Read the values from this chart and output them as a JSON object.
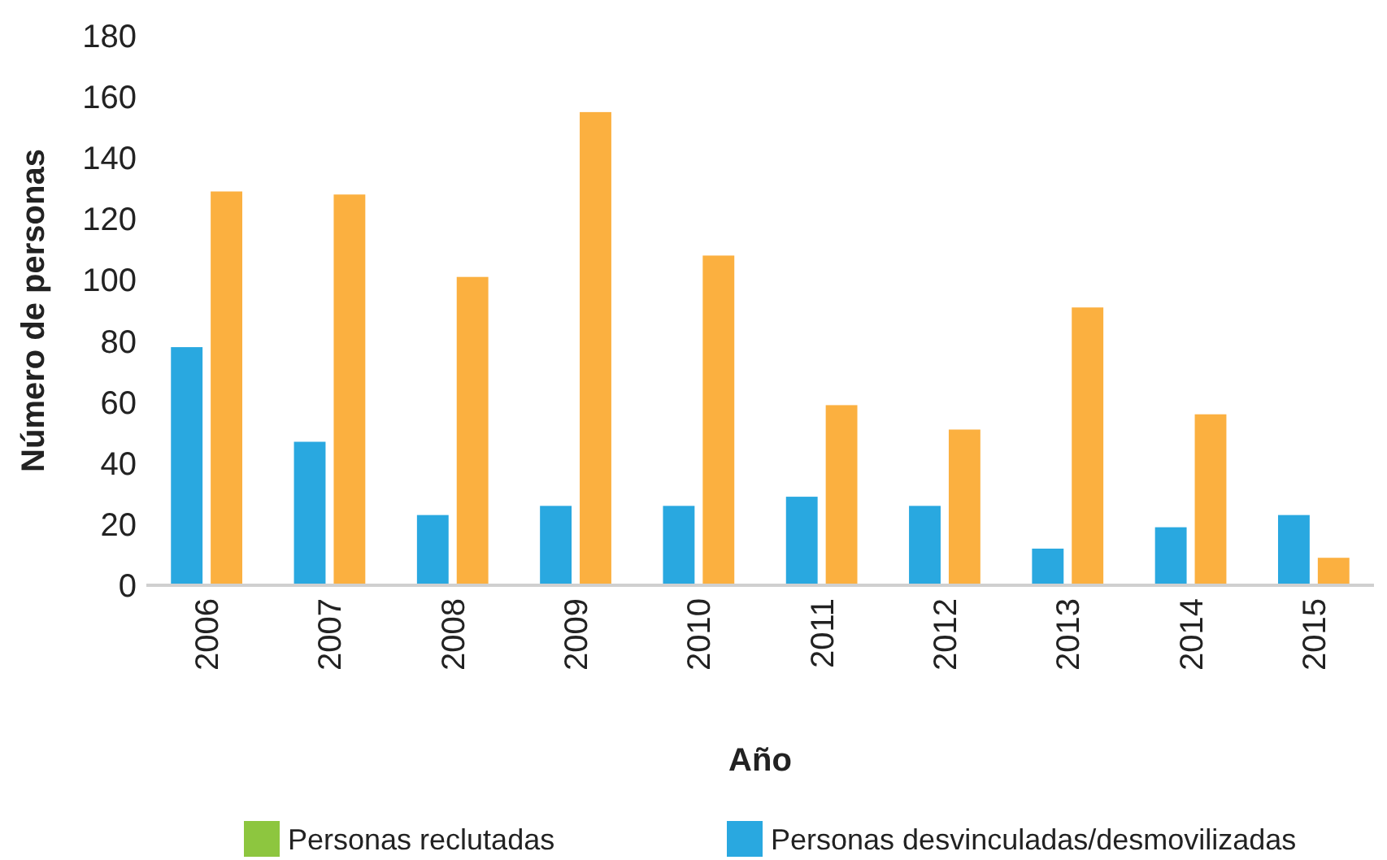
{
  "chart_data": {
    "type": "bar",
    "xlabel": "Año",
    "ylabel": "Número de personas",
    "categories": [
      "2006",
      "2007",
      "2008",
      "2009",
      "2010",
      "2011",
      "2012",
      "2013",
      "2014",
      "2015"
    ],
    "series": [
      {
        "name": "Personas reclutadas",
        "color": "#8dc63f",
        "values": [
          null,
          null,
          null,
          null,
          null,
          null,
          null,
          null,
          null,
          null
        ]
      },
      {
        "name": "Personas desvinculadas/desmovilizadas",
        "color": "#29a8e0",
        "values": [
          78,
          47,
          23,
          26,
          26,
          29,
          26,
          12,
          19,
          23
        ]
      },
      {
        "color": "#fbb040",
        "values": [
          129,
          128,
          101,
          155,
          108,
          59,
          51,
          91,
          56,
          9
        ]
      }
    ],
    "ylim": [
      0,
      180
    ],
    "yticks": [
      0,
      20,
      40,
      60,
      80,
      100,
      120,
      140,
      160,
      180
    ],
    "grid": false,
    "legend": "bottom"
  }
}
